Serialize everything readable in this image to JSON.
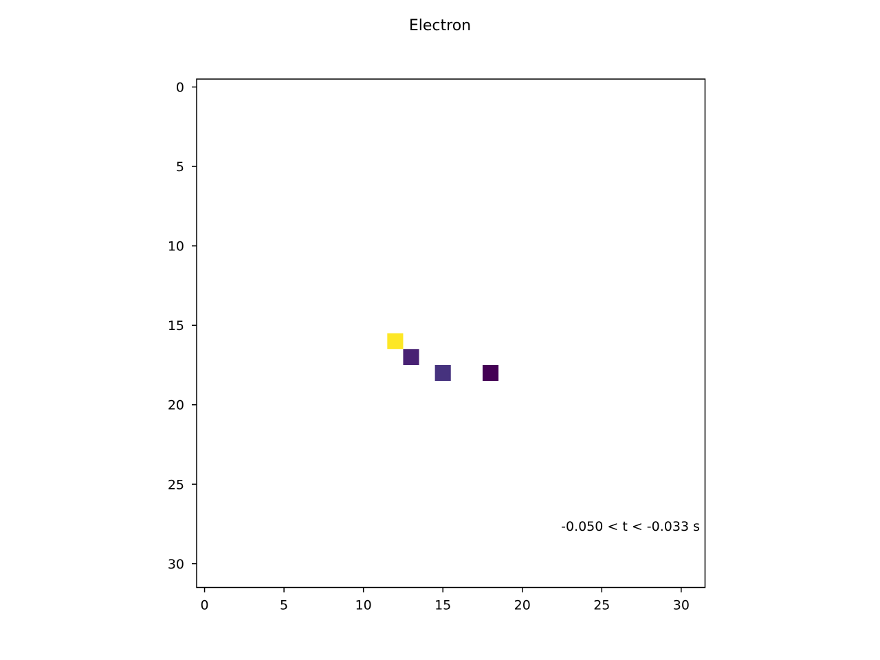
{
  "chart_data": {
    "type": "heatmap",
    "title": "Electron",
    "xlabel": "",
    "ylabel": "",
    "xlim": [
      -0.5,
      31.5
    ],
    "ylim": [
      31.5,
      -0.5
    ],
    "y_inverted": true,
    "grid": false,
    "xticks": [
      0,
      5,
      10,
      15,
      20,
      25,
      30
    ],
    "yticks": [
      0,
      5,
      10,
      15,
      20,
      25,
      30
    ],
    "annotation": "-0.050 < t < -0.033  s",
    "cells": [
      {
        "x": 12,
        "y": 16,
        "color": "#fde725"
      },
      {
        "x": 13,
        "y": 17,
        "color": "#482173"
      },
      {
        "x": 15,
        "y": 18,
        "color": "#46327e"
      },
      {
        "x": 18,
        "y": 18,
        "color": "#440154"
      }
    ]
  }
}
